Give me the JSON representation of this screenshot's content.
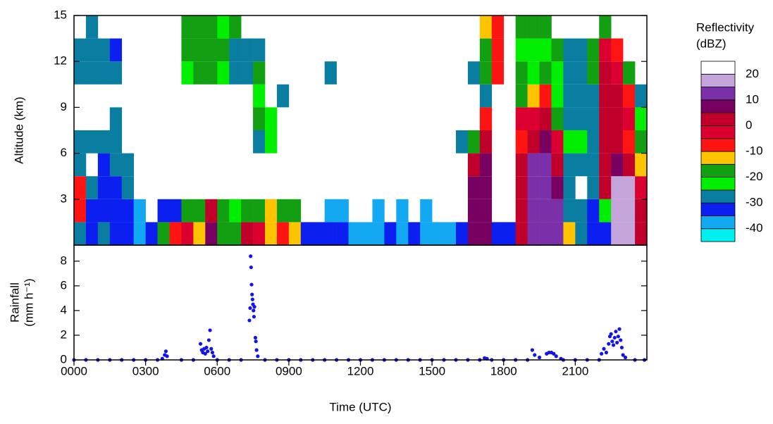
{
  "chart_data": [
    {
      "type": "heatmap",
      "y_label": "Altitude (km)",
      "xlim": [
        0,
        24
      ],
      "ylim": [
        0,
        15
      ],
      "yticks": [
        3,
        6,
        9,
        12,
        15
      ],
      "xbins": [
        0,
        0.5,
        1,
        1.5,
        2,
        2.5,
        3,
        3.5,
        4,
        4.5,
        5,
        5.5,
        6,
        6.5,
        7,
        7.5,
        8,
        8.5,
        9,
        9.5,
        10,
        10.5,
        11,
        11.5,
        12,
        12.5,
        13,
        13.5,
        14,
        14.5,
        15,
        15.5,
        16,
        16.5,
        17,
        17.5,
        18,
        18.5,
        19,
        19.5,
        20,
        20.5,
        21,
        21.5,
        22,
        22.5,
        23,
        23.5,
        24
      ],
      "ybins": [
        0,
        1.5,
        3,
        4.5,
        6,
        7.5,
        9,
        10.5,
        12,
        13.5,
        15
      ],
      "z": [
        [
          -30,
          -35,
          -30,
          -35,
          -35,
          -40,
          -35,
          -20,
          -10,
          -5,
          -15,
          5,
          -20,
          -20,
          0,
          -5,
          -15,
          -10,
          -15,
          -35,
          -35,
          -35,
          -35,
          -40,
          -40,
          -40,
          -35,
          -40,
          -35,
          -40,
          -40,
          -40,
          -35,
          5,
          5,
          -35,
          -35,
          0,
          10,
          10,
          10,
          -15,
          -30,
          -35,
          -35,
          15,
          15,
          0
        ],
        [
          -10,
          -35,
          -35,
          -35,
          -35,
          -40,
          null,
          -35,
          -35,
          -20,
          -20,
          0,
          -20,
          -25,
          -20,
          -20,
          -15,
          -20,
          -20,
          null,
          null,
          -40,
          -40,
          null,
          null,
          -40,
          null,
          -40,
          null,
          -40,
          null,
          null,
          null,
          5,
          5,
          null,
          null,
          0,
          10,
          10,
          10,
          -30,
          -30,
          -35,
          -25,
          15,
          15,
          0
        ],
        [
          -10,
          -30,
          -35,
          -35,
          -30,
          null,
          null,
          null,
          null,
          null,
          null,
          null,
          null,
          null,
          null,
          null,
          null,
          null,
          null,
          null,
          null,
          null,
          null,
          null,
          null,
          null,
          null,
          null,
          null,
          null,
          null,
          null,
          null,
          5,
          5,
          null,
          null,
          0,
          10,
          10,
          5,
          -30,
          null,
          -30,
          0,
          15,
          15,
          -5
        ],
        [
          -30,
          null,
          -35,
          -30,
          -30,
          null,
          null,
          null,
          null,
          null,
          null,
          null,
          null,
          null,
          null,
          null,
          null,
          null,
          null,
          null,
          null,
          null,
          null,
          null,
          null,
          null,
          null,
          null,
          null,
          null,
          null,
          null,
          null,
          0,
          5,
          null,
          null,
          0,
          10,
          10,
          0,
          -30,
          -30,
          -30,
          0,
          5,
          0,
          -15
        ],
        [
          -30,
          -30,
          -30,
          -30,
          null,
          null,
          null,
          null,
          null,
          null,
          null,
          null,
          null,
          null,
          null,
          -30,
          -25,
          null,
          null,
          null,
          null,
          null,
          null,
          null,
          null,
          null,
          null,
          null,
          null,
          null,
          null,
          null,
          -30,
          -20,
          0,
          null,
          null,
          -10,
          0,
          5,
          -5,
          -25,
          -25,
          -30,
          0,
          0,
          -10,
          -20
        ],
        [
          null,
          null,
          null,
          -30,
          null,
          null,
          null,
          null,
          null,
          null,
          null,
          null,
          null,
          null,
          null,
          -20,
          -25,
          null,
          null,
          null,
          null,
          null,
          null,
          null,
          null,
          null,
          null,
          null,
          null,
          null,
          null,
          null,
          null,
          null,
          -10,
          null,
          null,
          -5,
          -5,
          0,
          -20,
          -30,
          -30,
          -30,
          0,
          0,
          -5,
          -25
        ],
        [
          null,
          null,
          null,
          null,
          null,
          null,
          null,
          null,
          null,
          null,
          null,
          null,
          null,
          null,
          null,
          -25,
          null,
          -30,
          null,
          null,
          null,
          null,
          null,
          null,
          null,
          null,
          null,
          null,
          null,
          null,
          null,
          null,
          null,
          null,
          -30,
          null,
          null,
          -20,
          -15,
          -10,
          -25,
          -30,
          -30,
          -30,
          0,
          0,
          -10,
          -30
        ],
        [
          -30,
          -30,
          -30,
          -30,
          null,
          null,
          null,
          null,
          null,
          -25,
          -20,
          -20,
          -25,
          -30,
          -30,
          -20,
          null,
          null,
          null,
          null,
          null,
          -30,
          null,
          null,
          null,
          null,
          null,
          null,
          null,
          null,
          null,
          null,
          null,
          -30,
          -20,
          -10,
          null,
          -20,
          -25,
          -20,
          -25,
          -30,
          -30,
          -20,
          0,
          -5,
          -20,
          null
        ],
        [
          -30,
          -30,
          -30,
          -35,
          null,
          null,
          null,
          null,
          null,
          -20,
          -20,
          -20,
          -20,
          -30,
          -30,
          -30,
          null,
          null,
          null,
          null,
          null,
          null,
          null,
          null,
          null,
          null,
          null,
          null,
          null,
          null,
          null,
          null,
          null,
          null,
          -20,
          -10,
          null,
          -25,
          -25,
          -25,
          -20,
          -30,
          -30,
          -20,
          -5,
          -10,
          null,
          null
        ],
        [
          null,
          -30,
          null,
          null,
          null,
          null,
          null,
          null,
          null,
          -20,
          -20,
          -20,
          -25,
          -20,
          null,
          null,
          null,
          null,
          null,
          null,
          null,
          null,
          null,
          null,
          null,
          null,
          null,
          null,
          null,
          null,
          null,
          null,
          null,
          null,
          -15,
          -10,
          null,
          -20,
          -20,
          -20,
          null,
          null,
          null,
          null,
          -20,
          null,
          null,
          null
        ]
      ],
      "colorbar_title": [
        "Reflectivity",
        "(dBZ)"
      ],
      "levels": [
        -45,
        -40,
        -35,
        -30,
        -25,
        -20,
        -15,
        -10,
        -5,
        0,
        5,
        10,
        15,
        20,
        25
      ],
      "colors": [
        "#00f0f0",
        "#12a8f2",
        "#0a1ff0",
        "#0a7ea0",
        "#00ee00",
        "#12a012",
        "#ffc400",
        "#ff1414",
        "#dc0030",
        "#c0002a",
        "#780060",
        "#7a30a8",
        "#c4a4da",
        "#ffffff"
      ],
      "colorbar_ticks": [
        -40,
        -30,
        -20,
        -10,
        0,
        10,
        20
      ]
    },
    {
      "type": "scatter",
      "x_label": "Time (UTC)",
      "y_label": [
        "Rainfall",
        "(mm h⁻¹)"
      ],
      "color": "#1414e6",
      "xlim": [
        0,
        24
      ],
      "ylim": [
        0,
        9.3
      ],
      "xticks": [
        {
          "value": 0,
          "label": "0000"
        },
        {
          "value": 3,
          "label": "0300"
        },
        {
          "value": 6,
          "label": "0600"
        },
        {
          "value": 9,
          "label": "0900"
        },
        {
          "value": 12,
          "label": "1200"
        },
        {
          "value": 15,
          "label": "1500"
        },
        {
          "value": 18,
          "label": "1800"
        },
        {
          "value": 21,
          "label": "2100"
        }
      ],
      "yticks": [
        0,
        2,
        4,
        6,
        8
      ],
      "x": [
        0,
        0.5,
        1,
        1.5,
        2,
        2.5,
        3,
        3.5,
        3.7,
        3.8,
        3.85,
        3.9,
        4.5,
        5,
        5.3,
        5.35,
        5.4,
        5.45,
        5.5,
        5.55,
        5.6,
        5.65,
        5.7,
        5.75,
        5.8,
        5.85,
        6,
        6.5,
        7,
        7.35,
        7.38,
        7.4,
        7.42,
        7.44,
        7.46,
        7.48,
        7.5,
        7.52,
        7.54,
        7.56,
        7.6,
        7.62,
        7.65,
        7.7,
        8,
        8.5,
        9,
        9.5,
        10,
        10.5,
        11,
        11.5,
        12,
        12.5,
        13,
        13.5,
        14,
        14.5,
        15,
        15.5,
        16,
        16.5,
        17,
        17.2,
        17.3,
        17.5,
        18,
        18.5,
        19,
        19.2,
        19.3,
        19.5,
        19.8,
        19.9,
        20,
        20.1,
        20.2,
        20.4,
        20.5,
        21,
        21.5,
        22,
        22.1,
        22.2,
        22.3,
        22.4,
        22.45,
        22.5,
        22.55,
        22.6,
        22.65,
        22.7,
        22.75,
        22.8,
        22.85,
        22.9,
        22.95,
        23,
        23.1,
        23.5,
        23.9
      ],
      "values": [
        0,
        0,
        0,
        0,
        0,
        0,
        0,
        0,
        0.1,
        0.4,
        0.7,
        0.3,
        0,
        0,
        1.3,
        0.8,
        0.6,
        0.9,
        0.5,
        1.0,
        0.7,
        1.6,
        2.4,
        0.9,
        0.6,
        0.3,
        0,
        0,
        0,
        3.2,
        4.2,
        8.4,
        7.5,
        6.1,
        5.3,
        4.9,
        4.5,
        4.0,
        3.5,
        4.3,
        1.8,
        1.5,
        0.8,
        0.3,
        0,
        0,
        0,
        0,
        0,
        0,
        0,
        0,
        0,
        0,
        0,
        0,
        0,
        0,
        0,
        0,
        0,
        0,
        0,
        0.15,
        0.1,
        0,
        0,
        0,
        0,
        0.8,
        0.4,
        0.2,
        0.5,
        0.6,
        0.6,
        0.5,
        0.3,
        0.1,
        0,
        0,
        0,
        0,
        0.5,
        0.9,
        0.6,
        1.3,
        1.9,
        2.1,
        1.5,
        1.2,
        1.8,
        2.3,
        1.4,
        1.9,
        2.5,
        1.6,
        1.0,
        0.4,
        0.2,
        0,
        0
      ]
    }
  ]
}
